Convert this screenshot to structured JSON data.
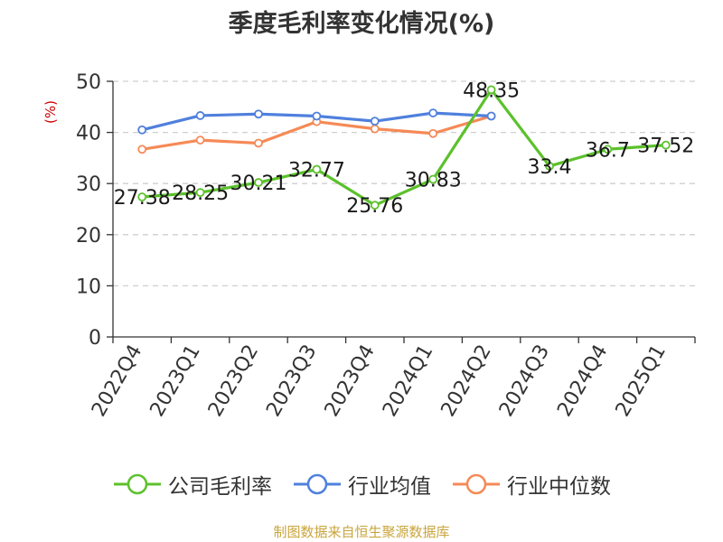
{
  "chart_data": {
    "type": "line",
    "title": "季度毛利率变化情况(%)",
    "ylabel": "(%)",
    "xlabel": "",
    "ylim": [
      0,
      50
    ],
    "yticks": [
      0,
      10,
      20,
      30,
      40,
      50
    ],
    "grid": true,
    "legend_position": "bottom",
    "categories": [
      "2022Q4",
      "2023Q1",
      "2023Q2",
      "2023Q3",
      "2023Q4",
      "2024Q1",
      "2024Q2",
      "2024Q3",
      "2024Q4",
      "2025Q1"
    ],
    "series": [
      {
        "name": "公司毛利率",
        "color": "#5cc12c",
        "values": [
          27.38,
          28.25,
          30.21,
          32.77,
          25.76,
          30.83,
          48.35,
          33.4,
          36.7,
          37.52
        ],
        "labels": [
          "27.38",
          "28.25",
          "30.21",
          "32.77",
          "25.76",
          "30.83",
          "48.35",
          "33.4",
          "36.7",
          "37.52"
        ],
        "show_labels": true
      },
      {
        "name": "行业均值",
        "color": "#4f80dd",
        "values": [
          40.5,
          43.3,
          43.6,
          43.2,
          42.2,
          43.8,
          43.2,
          null,
          null,
          null
        ],
        "show_labels": false
      },
      {
        "name": "行业中位数",
        "color": "#f58a57",
        "values": [
          36.7,
          38.5,
          37.9,
          42.1,
          40.7,
          39.8,
          43.2,
          null,
          null,
          null
        ],
        "show_labels": false
      }
    ],
    "source": "制图数据来自恒生聚源数据库"
  }
}
